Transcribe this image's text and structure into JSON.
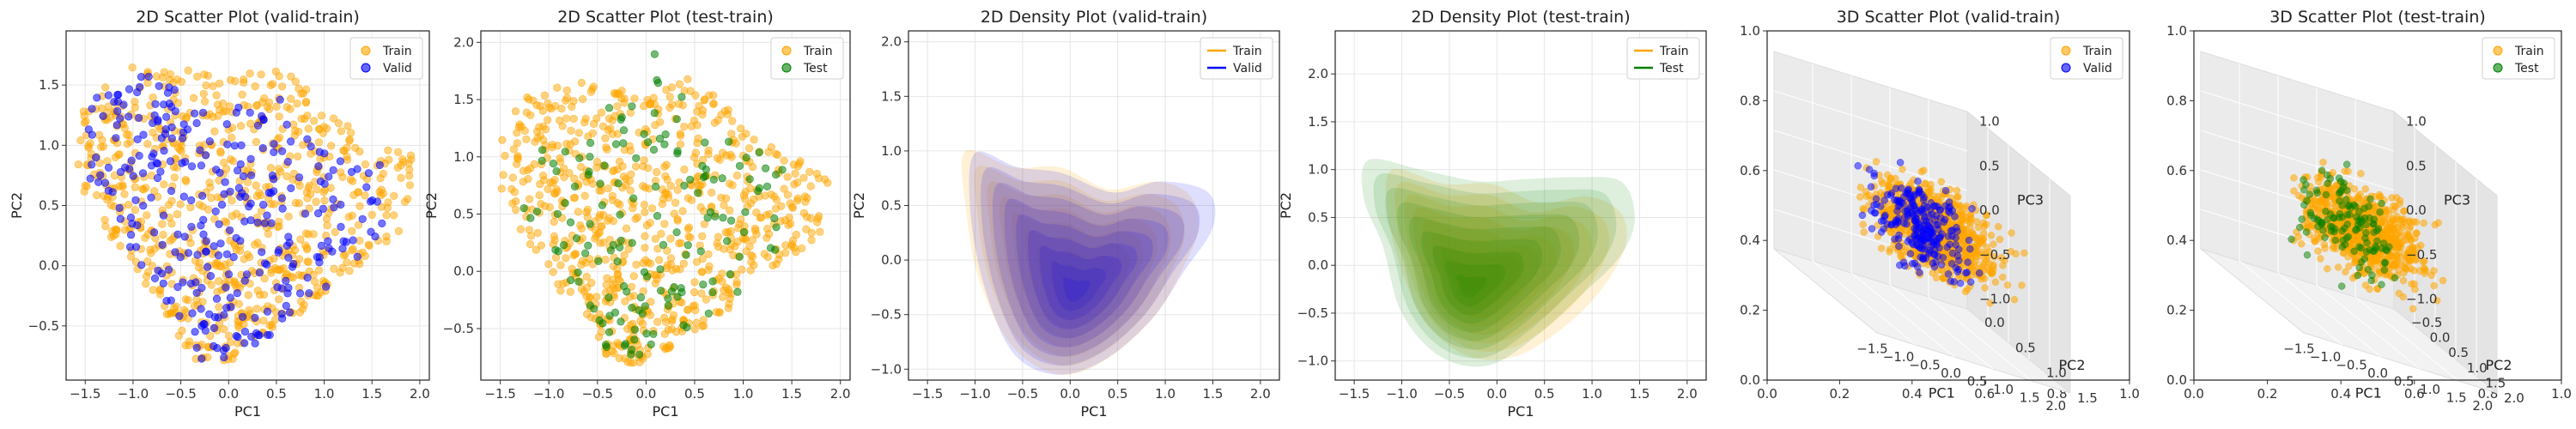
{
  "figure": {
    "theme": {
      "train": "#FFA500",
      "valid": "#0000FF",
      "test": "#008000",
      "grid": "#e6e6e6"
    }
  },
  "chart_data": [
    {
      "type": "scatter",
      "title": "2D Scatter Plot (valid-train)",
      "xlabel": "PC1",
      "ylabel": "PC2",
      "xlim": [
        -1.7,
        2.1
      ],
      "ylim": [
        -0.95,
        1.95
      ],
      "xticks": [
        -1.5,
        -1.0,
        -0.5,
        0.0,
        0.5,
        1.0,
        1.5,
        2.0
      ],
      "xtick_labels": [
        "−1.5",
        "−1.0",
        "−0.5",
        "0.0",
        "0.5",
        "1.0",
        "1.5",
        "2.0"
      ],
      "yticks": [
        -0.5,
        0.0,
        0.5,
        1.0,
        1.5
      ],
      "ytick_labels": [
        "−0.5",
        "0.0",
        "0.5",
        "1.0",
        "1.5"
      ],
      "grid": true,
      "legend_position": "top-right",
      "series": [
        {
          "name": "Train",
          "color": "#FFA500",
          "point_count": 3000,
          "hull": [
            [
              -0.35,
              -0.8
            ],
            [
              0.0,
              -0.8
            ],
            [
              0.5,
              -0.55
            ],
            [
              1.2,
              -0.1
            ],
            [
              1.8,
              0.3
            ],
            [
              2.0,
              0.9
            ],
            [
              1.5,
              1.0
            ],
            [
              0.5,
              1.7
            ],
            [
              0.0,
              1.55
            ],
            [
              -0.7,
              1.7
            ],
            [
              -1.3,
              1.6
            ],
            [
              -1.6,
              1.25
            ],
            [
              -1.6,
              0.7
            ],
            [
              -1.2,
              0.2
            ],
            [
              -0.7,
              -0.4
            ]
          ]
        },
        {
          "name": "Valid",
          "color": "#0000FF",
          "point_count": 1200,
          "hull": [
            [
              -0.3,
              -0.8
            ],
            [
              0.0,
              -0.8
            ],
            [
              0.5,
              -0.55
            ],
            [
              1.2,
              -0.1
            ],
            [
              1.6,
              0.3
            ],
            [
              1.65,
              0.85
            ],
            [
              1.1,
              0.9
            ],
            [
              0.4,
              1.5
            ],
            [
              0.0,
              1.3
            ],
            [
              -0.8,
              1.6
            ],
            [
              -1.3,
              1.5
            ],
            [
              -1.55,
              1.2
            ],
            [
              -1.5,
              0.7
            ],
            [
              -1.1,
              0.2
            ],
            [
              -0.6,
              -0.4
            ]
          ]
        }
      ]
    },
    {
      "type": "scatter",
      "title": "2D Scatter Plot (test-train)",
      "xlabel": "PC1",
      "ylabel": "PC2",
      "xlim": [
        -1.7,
        2.1
      ],
      "ylim": [
        -0.95,
        2.1
      ],
      "xticks": [
        -1.5,
        -1.0,
        -0.5,
        0.0,
        0.5,
        1.0,
        1.5,
        2.0
      ],
      "xtick_labels": [
        "−1.5",
        "−1.0",
        "−0.5",
        "0.0",
        "0.5",
        "1.0",
        "1.5",
        "2.0"
      ],
      "yticks": [
        -0.5,
        0.0,
        0.5,
        1.0,
        1.5,
        2.0
      ],
      "ytick_labels": [
        "−0.5",
        "0.0",
        "0.5",
        "1.0",
        "1.5",
        "2.0"
      ],
      "grid": true,
      "legend_position": "top-right",
      "series": [
        {
          "name": "Train",
          "color": "#FFA500",
          "point_count": 3000,
          "hull": [
            [
              -0.35,
              -0.8
            ],
            [
              0.0,
              -0.8
            ],
            [
              0.5,
              -0.55
            ],
            [
              1.2,
              -0.1
            ],
            [
              1.8,
              0.3
            ],
            [
              1.9,
              0.9
            ],
            [
              1.4,
              1.0
            ],
            [
              0.5,
              1.7
            ],
            [
              0.0,
              1.55
            ],
            [
              -0.7,
              1.7
            ],
            [
              -1.3,
              1.5
            ],
            [
              -1.5,
              1.2
            ],
            [
              -1.5,
              0.7
            ],
            [
              -1.2,
              0.2
            ],
            [
              -0.7,
              -0.4
            ]
          ]
        },
        {
          "name": "Test",
          "color": "#008000",
          "point_count": 600,
          "hull": [
            [
              -0.4,
              -0.7
            ],
            [
              0.0,
              -0.75
            ],
            [
              0.5,
              -0.5
            ],
            [
              1.2,
              0.0
            ],
            [
              1.6,
              0.55
            ],
            [
              1.4,
              0.95
            ],
            [
              0.5,
              1.3
            ],
            [
              0.1,
              2.0
            ],
            [
              -0.6,
              1.3
            ],
            [
              -1.2,
              1.2
            ],
            [
              -1.3,
              0.6
            ],
            [
              -1.0,
              0.2
            ],
            [
              -0.7,
              -0.3
            ]
          ]
        }
      ]
    },
    {
      "type": "area",
      "title": "2D Density Plot (valid-train)",
      "xlabel": "PC1",
      "ylabel": "PC2",
      "xlim": [
        -1.7,
        2.2
      ],
      "ylim": [
        -1.1,
        2.1
      ],
      "xticks": [
        -1.5,
        -1.0,
        -0.5,
        0.0,
        0.5,
        1.0,
        1.5,
        2.0
      ],
      "xtick_labels": [
        "−1.5",
        "−1.0",
        "−0.5",
        "0.0",
        "0.5",
        "1.0",
        "1.5",
        "2.0"
      ],
      "yticks": [
        -1.0,
        -0.5,
        0.0,
        0.5,
        1.0,
        1.5,
        2.0
      ],
      "ytick_labels": [
        "−1.0",
        "−0.5",
        "0.0",
        "0.5",
        "1.0",
        "1.5",
        "2.0"
      ],
      "grid": true,
      "legend_position": "top-right",
      "series": [
        {
          "name": "Train",
          "color": "#FFA500",
          "level_count": 9,
          "outer": [
            [
              -1.1,
              1.0
            ],
            [
              -0.6,
              0.85
            ],
            [
              -0.1,
              0.85
            ],
            [
              0.4,
              0.65
            ],
            [
              0.9,
              0.72
            ],
            [
              1.25,
              0.6
            ],
            [
              1.35,
              0.3
            ],
            [
              1.2,
              -0.05
            ],
            [
              0.9,
              -0.5
            ],
            [
              0.4,
              -0.9
            ],
            [
              -0.1,
              -1.05
            ],
            [
              -0.6,
              -0.8
            ],
            [
              -0.95,
              -0.2
            ],
            [
              -1.1,
              0.5
            ]
          ],
          "peak": [
            0.05,
            -0.3
          ]
        },
        {
          "name": "Valid",
          "color": "#0000FF",
          "level_count": 9,
          "outer": [
            [
              -1.0,
              0.98
            ],
            [
              -0.55,
              0.85
            ],
            [
              -0.1,
              0.8
            ],
            [
              0.45,
              0.62
            ],
            [
              0.95,
              0.72
            ],
            [
              1.45,
              0.62
            ],
            [
              1.5,
              0.3
            ],
            [
              1.2,
              -0.1
            ],
            [
              0.85,
              -0.55
            ],
            [
              0.35,
              -0.92
            ],
            [
              -0.15,
              -1.05
            ],
            [
              -0.6,
              -0.85
            ],
            [
              -0.9,
              -0.25
            ],
            [
              -1.05,
              0.45
            ]
          ],
          "peak": [
            0.05,
            -0.3
          ]
        }
      ]
    },
    {
      "type": "area",
      "title": "2D Density Plot (test-train)",
      "xlabel": "PC1",
      "ylabel": "PC2",
      "xlim": [
        -1.7,
        2.2
      ],
      "ylim": [
        -1.2,
        2.45
      ],
      "xticks": [
        -1.5,
        -1.0,
        -0.5,
        0.0,
        0.5,
        1.0,
        1.5,
        2.0
      ],
      "xtick_labels": [
        "−1.5",
        "−1.0",
        "−0.5",
        "0.0",
        "0.5",
        "1.0",
        "1.5",
        "2.0"
      ],
      "yticks": [
        -1.0,
        -0.5,
        0.0,
        0.5,
        1.0,
        1.5,
        2.0
      ],
      "ytick_labels": [
        "−1.0",
        "−0.5",
        "0.0",
        "0.5",
        "1.0",
        "1.5",
        "2.0"
      ],
      "grid": true,
      "legend_position": "top-right",
      "series": [
        {
          "name": "Train",
          "color": "#FFA500",
          "level_count": 9,
          "outer": [
            [
              -1.1,
              1.0
            ],
            [
              -0.55,
              0.85
            ],
            [
              -0.05,
              0.85
            ],
            [
              0.45,
              0.65
            ],
            [
              0.95,
              0.72
            ],
            [
              1.3,
              0.55
            ],
            [
              1.35,
              0.2
            ],
            [
              1.1,
              -0.25
            ],
            [
              0.7,
              -0.65
            ],
            [
              0.2,
              -0.95
            ],
            [
              -0.3,
              -0.95
            ],
            [
              -0.75,
              -0.6
            ],
            [
              -1.0,
              -0.05
            ],
            [
              -1.15,
              0.55
            ]
          ],
          "peak": [
            -0.3,
            -0.2
          ]
        },
        {
          "name": "Test",
          "color": "#008000",
          "level_count": 9,
          "outer": [
            [
              -1.35,
              1.1
            ],
            [
              -0.8,
              1.0
            ],
            [
              -0.2,
              0.88
            ],
            [
              0.3,
              0.9
            ],
            [
              0.8,
              0.92
            ],
            [
              1.3,
              0.88
            ],
            [
              1.45,
              0.5
            ],
            [
              1.3,
              0.1
            ],
            [
              0.9,
              -0.3
            ],
            [
              0.4,
              -0.75
            ],
            [
              -0.1,
              -1.05
            ],
            [
              -0.6,
              -0.95
            ],
            [
              -1.0,
              -0.5
            ],
            [
              -1.2,
              0.2
            ],
            [
              -1.4,
              0.7
            ]
          ],
          "peak": [
            -0.3,
            -0.25
          ]
        }
      ]
    },
    {
      "type": "scatter",
      "projection": "3d",
      "title": "3D Scatter Plot (valid-train)",
      "xlabel": "PC1",
      "ylabel": "PC2",
      "zlabel": "PC3",
      "frame_xlim": [
        0.0,
        1.0
      ],
      "frame_ylim": [
        0.0,
        1.0
      ],
      "frame_xticks": [
        "0.0",
        "0.2",
        "0.4",
        "0.6",
        "0.8",
        "1.0"
      ],
      "frame_yticks": [
        "0.0",
        "0.2",
        "0.4",
        "0.6",
        "0.8",
        "1.0"
      ],
      "x_ticks": [
        "−1.5",
        "−1.0",
        "−0.5",
        "0.0",
        "0.5",
        "1.0",
        "1.5",
        "2.0"
      ],
      "y_ticks": [
        "0.0",
        "0.5",
        "1.0",
        "1.5"
      ],
      "z_ticks": [
        "−1.0",
        "−0.5",
        "0.0",
        "0.5",
        "1.0"
      ],
      "legend_position": "top-right",
      "series": [
        {
          "name": "Train",
          "color": "#FFA500",
          "point_count": 2600,
          "range": {
            "x": [
              -1.5,
              2.0
            ],
            "y": [
              -0.8,
              1.8
            ],
            "z": [
              -1.0,
              1.0
            ]
          }
        },
        {
          "name": "Valid",
          "color": "#0000FF",
          "point_count": 1000,
          "range": {
            "x": [
              -1.5,
              1.8
            ],
            "y": [
              -0.8,
              1.6
            ],
            "z": [
              -1.0,
              1.0
            ]
          }
        }
      ]
    },
    {
      "type": "scatter",
      "projection": "3d",
      "title": "3D Scatter Plot (test-train)",
      "xlabel": "PC1",
      "ylabel": "PC2",
      "zlabel": "PC3",
      "frame_xlim": [
        0.0,
        1.0
      ],
      "frame_ylim": [
        0.0,
        1.0
      ],
      "frame_xticks": [
        "0.0",
        "0.2",
        "0.4",
        "0.6",
        "0.8",
        "1.0"
      ],
      "frame_yticks": [
        "0.0",
        "0.2",
        "0.4",
        "0.6",
        "0.8",
        "1.0"
      ],
      "x_ticks": [
        "−1.5",
        "−1.0",
        "−0.5",
        "0.0",
        "0.5",
        "1.0",
        "1.5",
        "2.0"
      ],
      "y_ticks": [
        "−0.5",
        "0.0",
        "0.5",
        "1.0",
        "1.5",
        "2.0"
      ],
      "z_ticks": [
        "−1.0",
        "−0.5",
        "0.0",
        "0.5",
        "1.0"
      ],
      "legend_position": "top-right",
      "series": [
        {
          "name": "Train",
          "color": "#FFA500",
          "point_count": 2600,
          "range": {
            "x": [
              -1.5,
              2.0
            ],
            "y": [
              -0.8,
              2.0
            ],
            "z": [
              -1.0,
              1.0
            ]
          }
        },
        {
          "name": "Test",
          "color": "#008000",
          "point_count": 500,
          "range": {
            "x": [
              -1.4,
              1.6
            ],
            "y": [
              -0.7,
              2.0
            ],
            "z": [
              -1.0,
              1.0
            ]
          }
        }
      ]
    }
  ]
}
